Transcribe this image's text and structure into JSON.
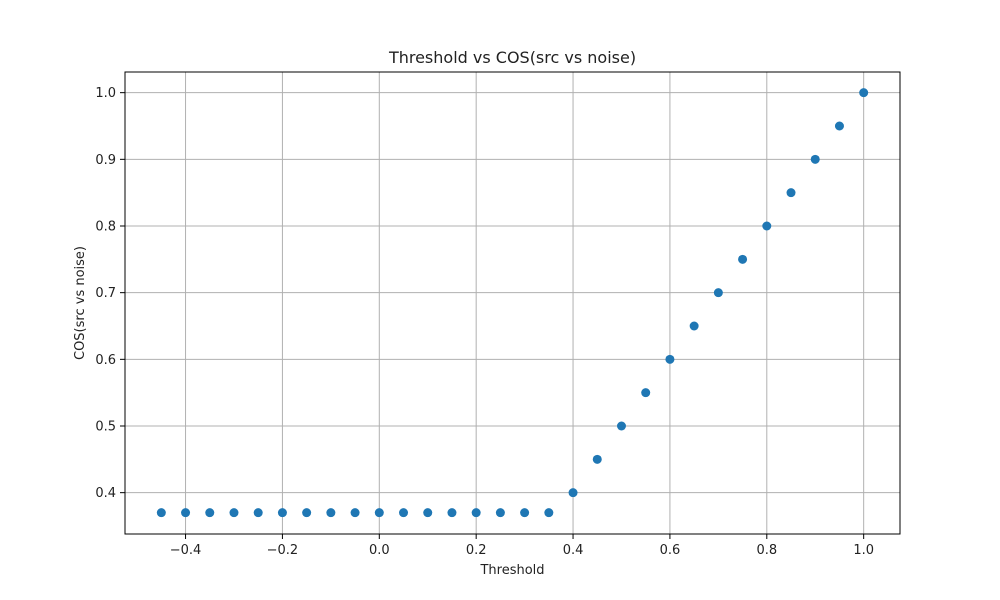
{
  "chart_data": {
    "type": "scatter",
    "title": "Threshold vs COS(src vs noise)",
    "xlabel": "Threshold",
    "ylabel": "COS(src vs noise)",
    "xlim": [
      -0.525,
      1.075
    ],
    "ylim": [
      0.338,
      1.031
    ],
    "xticks": [
      -0.4,
      -0.2,
      0.0,
      0.2,
      0.4,
      0.6,
      0.8,
      1.0
    ],
    "xtick_labels": [
      "−0.4",
      "−0.2",
      "0.0",
      "0.2",
      "0.4",
      "0.6",
      "0.8",
      "1.0"
    ],
    "yticks": [
      0.4,
      0.5,
      0.6,
      0.7,
      0.8,
      0.9,
      1.0
    ],
    "ytick_labels": [
      "0.4",
      "0.5",
      "0.6",
      "0.7",
      "0.8",
      "0.9",
      "1.0"
    ],
    "grid": true,
    "legend": "none",
    "series": [
      {
        "color": "#1f77b4",
        "points": [
          {
            "x": -0.45,
            "y": 0.37
          },
          {
            "x": -0.4,
            "y": 0.37
          },
          {
            "x": -0.35,
            "y": 0.37
          },
          {
            "x": -0.3,
            "y": 0.37
          },
          {
            "x": -0.25,
            "y": 0.37
          },
          {
            "x": -0.2,
            "y": 0.37
          },
          {
            "x": -0.15,
            "y": 0.37
          },
          {
            "x": -0.1,
            "y": 0.37
          },
          {
            "x": -0.05,
            "y": 0.37
          },
          {
            "x": 0.0,
            "y": 0.37
          },
          {
            "x": 0.05,
            "y": 0.37
          },
          {
            "x": 0.1,
            "y": 0.37
          },
          {
            "x": 0.15,
            "y": 0.37
          },
          {
            "x": 0.2,
            "y": 0.37
          },
          {
            "x": 0.25,
            "y": 0.37
          },
          {
            "x": 0.3,
            "y": 0.37
          },
          {
            "x": 0.35,
            "y": 0.37
          },
          {
            "x": 0.4,
            "y": 0.4
          },
          {
            "x": 0.45,
            "y": 0.45
          },
          {
            "x": 0.5,
            "y": 0.5
          },
          {
            "x": 0.55,
            "y": 0.55
          },
          {
            "x": 0.6,
            "y": 0.6
          },
          {
            "x": 0.65,
            "y": 0.65
          },
          {
            "x": 0.7,
            "y": 0.7
          },
          {
            "x": 0.75,
            "y": 0.75
          },
          {
            "x": 0.8,
            "y": 0.8
          },
          {
            "x": 0.85,
            "y": 0.85
          },
          {
            "x": 0.9,
            "y": 0.9
          },
          {
            "x": 0.95,
            "y": 0.95
          },
          {
            "x": 1.0,
            "y": 1.0
          }
        ]
      }
    ]
  }
}
